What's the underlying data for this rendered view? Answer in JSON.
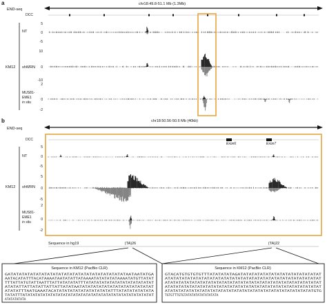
{
  "chart_data": [
    {
      "panel_label": "a",
      "type": "genome-browser-tracks",
      "region_label": "chr18:49.8-51.1 Mb (1.3Mb)",
      "track_group": "END-seq",
      "dcc_label": "DCC",
      "cell_line": "KM12",
      "tracks": [
        {
          "label": "NT",
          "ticks": [
            "5",
            "0",
            "-5"
          ]
        },
        {
          "label": "shWRN",
          "ticks": [
            "10",
            "0",
            "-10"
          ]
        },
        {
          "label_lines": [
            "MUS81-",
            "EME1",
            "in situ"
          ],
          "ticks": [
            "2",
            "0",
            "-2"
          ]
        }
      ],
      "highlight": {
        "color": "#e8a33d"
      }
    },
    {
      "panel_label": "b",
      "type": "genome-browser-tracks",
      "region_label": "chr18:50.56-50.6 Mb (40kb)",
      "track_group": "END-seq",
      "dcc_label": "DCC",
      "exons": [
        "Exon6",
        "Exon7"
      ],
      "cell_line": "KM12",
      "tracks": [
        {
          "label": "NT",
          "ticks": [
            "5",
            "0",
            "-5"
          ]
        },
        {
          "label": "shWRN",
          "ticks": [
            "5",
            "0",
            "-5"
          ]
        },
        {
          "label_lines": [
            "MUS81-",
            "EME1",
            "in situ"
          ],
          "ticks": [
            "2",
            "0",
            "-2"
          ]
        }
      ],
      "highlight": {
        "color": "#e8a33d"
      },
      "hg19_label": "Sequence in hg19",
      "repeats": [
        {
          "label": "(TA)26"
        },
        {
          "label": "(TA)22"
        }
      ]
    }
  ],
  "sequence_boxes": [
    {
      "title": "Sequence in KM12 (PacBio CLR)",
      "lines": [
        "GATATATATATATATATATATATATATATATATATATATATATAATAATATGA",
        "AATACATATTTACATAAAATAATATATTATAAAATATATATATAAAATATGTTATAT",
        "TTTATTATGTATTAATTTATTATATATATTTATATATATATATATATATATATATAT",
        "ATATATTATTATATTATTATTATATAATATATATATATATATATATATATATAT",
        "ATATATTTAATGAAATACATATATATATATATATATATATTTATATATATATATA",
        "TATATTTATATATATATATATATATATATATATATATATATATATATATATATATATAT",
        "ATATATATATA"
      ]
    },
    {
      "title": "Sequence in KM12 (PacBio CLR)",
      "lines": [
        "GTACATGTGTGTGTTTATATATATAGATATATATATATATATATATATATATATAT",
        "ATATATATATATATATATATATATATATATATATATATATATATATATATATATAT",
        "ATATATATATATATATATATATATATATATATATATATATATATATATATATATATAT",
        "ATATATATATATATATATATATATATATATATATATATATATATATATATATATATAT",
        "ATATATATATATATATATATATATATATATATATATATATATATATATATATATATGTG",
        "TGTGTTTGTGTATATATATATATATATA"
      ]
    }
  ],
  "colors": {
    "highlight": "#e8a33d",
    "signal": "#111111",
    "signal_neg": "#777777"
  }
}
